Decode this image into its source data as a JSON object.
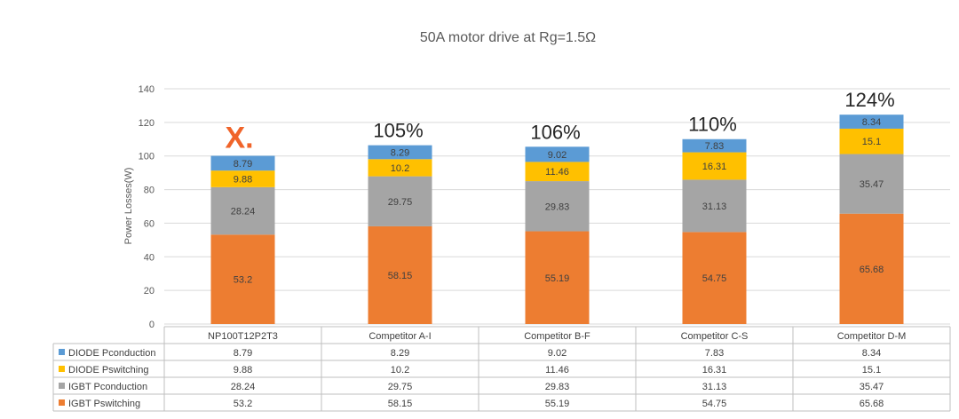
{
  "chart_data": {
    "type": "bar",
    "stacked": true,
    "title": "50A motor drive at Rg=1.5Ω",
    "ylabel": "Power Losses(W)",
    "xlabel": "",
    "ylim": [
      0,
      140
    ],
    "yticks": [
      0,
      20,
      40,
      60,
      80,
      100,
      120,
      140
    ],
    "grid": true,
    "legend_position": "left, in data table",
    "categories": [
      "NP100T12P2T3",
      "Competitor A-I",
      "Competitor B-F",
      "Competitor C-S",
      "Competitor D-M"
    ],
    "series": [
      {
        "name": "IGBT Pswitching",
        "color": "#ed7d31",
        "values": [
          53.2,
          58.15,
          55.19,
          54.75,
          65.68
        ]
      },
      {
        "name": "IGBT Pconduction",
        "color": "#a5a5a5",
        "values": [
          28.24,
          29.75,
          29.83,
          31.13,
          35.47
        ]
      },
      {
        "name": "DIODE Pswitching",
        "color": "#ffc000",
        "values": [
          9.88,
          10.2,
          11.46,
          16.31,
          15.1
        ]
      },
      {
        "name": "DIODE Pconduction",
        "color": "#5b9bd5",
        "values": [
          8.79,
          8.29,
          9.02,
          7.83,
          8.34
        ]
      }
    ],
    "table_row_order": [
      "DIODE Pconduction",
      "DIODE Pswitching",
      "IGBT Pconduction",
      "IGBT Pswitching"
    ],
    "annotations": [
      {
        "category": "NP100T12P2T3",
        "text": "X.",
        "kind": "logo",
        "color": "#f0642a"
      },
      {
        "category": "Competitor A-I",
        "text": "105%"
      },
      {
        "category": "Competitor B-F",
        "text": "106%"
      },
      {
        "category": "Competitor C-S",
        "text": "110%"
      },
      {
        "category": "Competitor D-M",
        "text": "124%"
      }
    ]
  }
}
